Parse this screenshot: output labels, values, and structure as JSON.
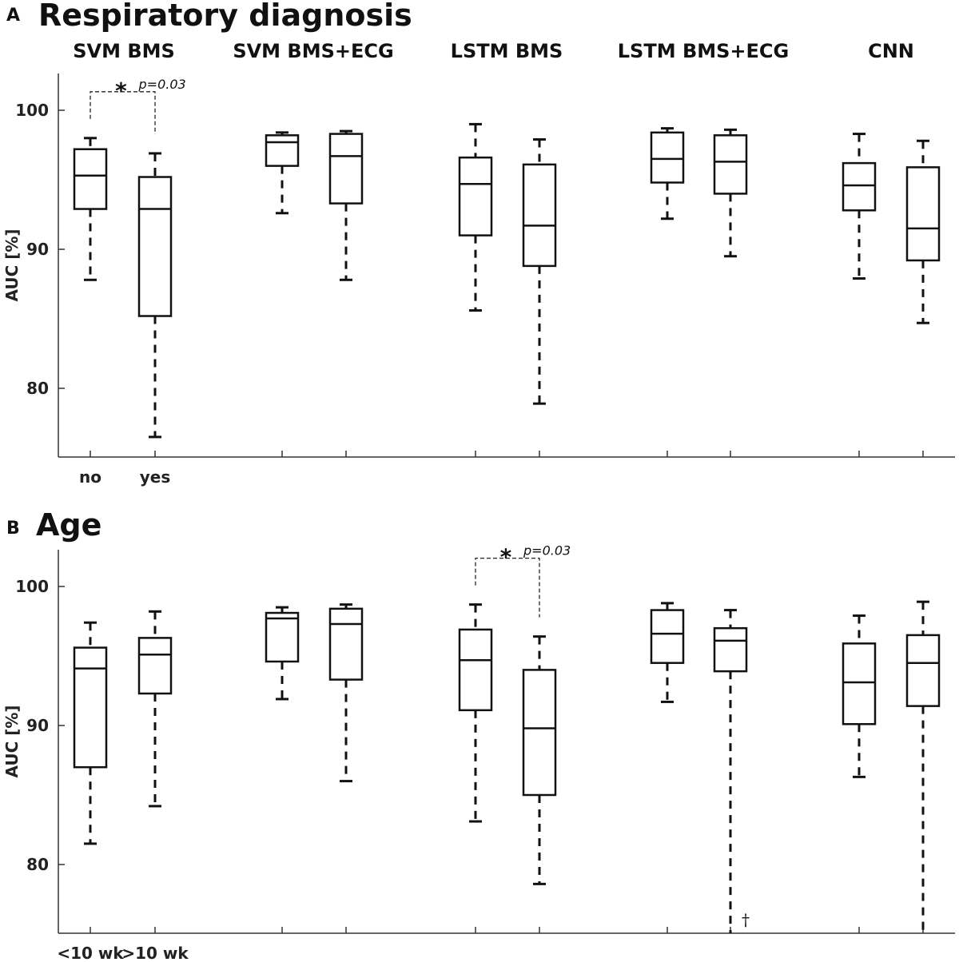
{
  "chart_data": [
    {
      "type": "box",
      "panel_letter": "A",
      "title": "Respiratory diagnosis",
      "ylabel": "AUC [%]",
      "ylim": [
        75,
        102.5
      ],
      "yticks": [
        80,
        90,
        100
      ],
      "categories": [
        "no",
        "yes"
      ],
      "models": [
        "SVM BMS",
        "SVM BMS+ECG",
        "LSTM BMS",
        "LSTM BMS+ECG",
        "CNN"
      ],
      "boxes": [
        {
          "model": "SVM BMS",
          "category": "no",
          "min": 87.8,
          "q1": 92.9,
          "median": 95.3,
          "q3": 97.2,
          "max": 98.0
        },
        {
          "model": "SVM BMS",
          "category": "yes",
          "min": 76.5,
          "q1": 85.2,
          "median": 92.9,
          "q3": 95.2,
          "max": 96.9
        },
        {
          "model": "SVM BMS+ECG",
          "category": "no",
          "min": 92.6,
          "q1": 96.0,
          "median": 97.7,
          "q3": 98.2,
          "max": 98.4
        },
        {
          "model": "SVM BMS+ECG",
          "category": "yes",
          "min": 87.8,
          "q1": 93.3,
          "median": 96.7,
          "q3": 98.3,
          "max": 98.5
        },
        {
          "model": "LSTM BMS",
          "category": "no",
          "min": 85.6,
          "q1": 91.0,
          "median": 94.7,
          "q3": 96.6,
          "max": 99.0
        },
        {
          "model": "LSTM BMS",
          "category": "yes",
          "min": 78.9,
          "q1": 88.8,
          "median": 91.7,
          "q3": 96.1,
          "max": 97.9
        },
        {
          "model": "LSTM BMS+ECG",
          "category": "no",
          "min": 92.2,
          "q1": 94.8,
          "median": 96.5,
          "q3": 98.4,
          "max": 98.7
        },
        {
          "model": "LSTM BMS+ECG",
          "category": "yes",
          "min": 89.5,
          "q1": 94.0,
          "median": 96.3,
          "q3": 98.2,
          "max": 98.6
        },
        {
          "model": "CNN",
          "category": "no",
          "min": 87.9,
          "q1": 92.8,
          "median": 94.6,
          "q3": 96.2,
          "max": 98.3
        },
        {
          "model": "CNN",
          "category": "yes",
          "min": 84.7,
          "q1": 89.2,
          "median": 91.5,
          "q3": 95.9,
          "max": 97.8
        }
      ],
      "significance": [
        {
          "model": "SVM BMS",
          "from": "no",
          "to": "yes",
          "marker": "*",
          "p_text": "p=0.03"
        }
      ],
      "annotations": []
    },
    {
      "type": "box",
      "panel_letter": "B",
      "title": "Age",
      "ylabel": "AUC [%]",
      "ylim": [
        75,
        102.5
      ],
      "yticks": [
        80,
        90,
        100
      ],
      "categories": [
        "<10 wk",
        ">10 wk"
      ],
      "models": [
        "SVM BMS",
        "SVM BMS+ECG",
        "LSTM BMS",
        "LSTM BMS+ECG",
        "CNN"
      ],
      "boxes": [
        {
          "model": "SVM BMS",
          "category": "<10 wk",
          "min": 81.5,
          "q1": 87.0,
          "median": 94.1,
          "q3": 95.6,
          "max": 97.4
        },
        {
          "model": "SVM BMS",
          "category": ">10 wk",
          "min": 84.2,
          "q1": 92.3,
          "median": 95.1,
          "q3": 96.3,
          "max": 98.2
        },
        {
          "model": "SVM BMS+ECG",
          "category": "<10 wk",
          "min": 91.9,
          "q1": 94.6,
          "median": 97.7,
          "q3": 98.1,
          "max": 98.5
        },
        {
          "model": "SVM BMS+ECG",
          "category": ">10 wk",
          "min": 86.0,
          "q1": 93.3,
          "median": 97.3,
          "q3": 98.4,
          "max": 98.7
        },
        {
          "model": "LSTM BMS",
          "category": "<10 wk",
          "min": 83.1,
          "q1": 91.1,
          "median": 94.7,
          "q3": 96.9,
          "max": 98.7
        },
        {
          "model": "LSTM BMS",
          "category": ">10 wk",
          "min": 78.6,
          "q1": 85.0,
          "median": 89.8,
          "q3": 94.0,
          "max": 96.4
        },
        {
          "model": "LSTM BMS+ECG",
          "category": "<10 wk",
          "min": 91.7,
          "q1": 94.5,
          "median": 96.6,
          "q3": 98.3,
          "max": 98.8
        },
        {
          "model": "LSTM BMS+ECG",
          "category": ">10 wk",
          "min": 75.0,
          "q1": 93.9,
          "median": 96.1,
          "q3": 97.0,
          "max": 98.3
        },
        {
          "model": "CNN",
          "category": "<10 wk",
          "min": 86.3,
          "q1": 90.1,
          "median": 93.1,
          "q3": 95.9,
          "max": 97.9
        },
        {
          "model": "CNN",
          "category": ">10 wk",
          "min": 75.2,
          "q1": 91.4,
          "median": 94.5,
          "q3": 96.5,
          "max": 98.9
        }
      ],
      "significance": [
        {
          "model": "LSTM BMS",
          "from": "<10 wk",
          "to": ">10 wk",
          "marker": "*",
          "p_text": "p=0.03"
        }
      ],
      "annotations": [
        {
          "model": "LSTM BMS+ECG",
          "category": ">10 wk",
          "text": "†"
        }
      ]
    }
  ]
}
